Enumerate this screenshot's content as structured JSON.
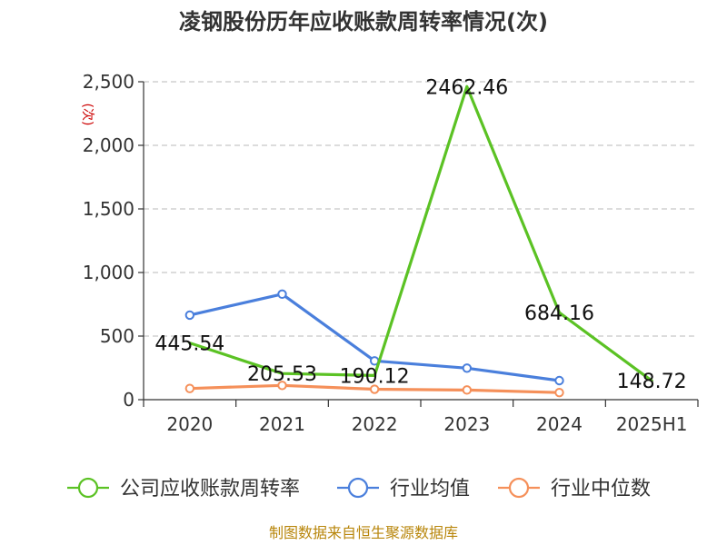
{
  "chart_data": {
    "type": "line",
    "title": "凌钢股份历年应收账款周转率情况(次)",
    "ylabel": "(次)",
    "xlabel": "",
    "categories": [
      "2020",
      "2021",
      "2022",
      "2023",
      "2024",
      "2025H1"
    ],
    "ylim": [
      0,
      2500
    ],
    "yticks": [
      0,
      500,
      1000,
      1500,
      2000,
      2500
    ],
    "ytick_labels": [
      "0",
      "500",
      "1,000",
      "1,500",
      "2,000",
      "2,500"
    ],
    "grid": true,
    "legend_position": "bottom",
    "series": [
      {
        "name": "公司应收账款周转率",
        "color": "#5bc224",
        "values": [
          445.54,
          205.53,
          190.12,
          2462.46,
          684.16,
          148.72
        ],
        "labels": [
          "445.54",
          "205.53",
          "190.12",
          "2462.46",
          "684.16",
          "148.72"
        ],
        "markers": false
      },
      {
        "name": "行业均值",
        "color": "#4a7fdc",
        "values": [
          665,
          830,
          305,
          248,
          150,
          null
        ],
        "markers": true
      },
      {
        "name": "行业中位数",
        "color": "#f5905a",
        "values": [
          88,
          112,
          82,
          76,
          56,
          null
        ],
        "markers": true
      }
    ]
  },
  "source": "制图数据来自恒生聚源数据库"
}
